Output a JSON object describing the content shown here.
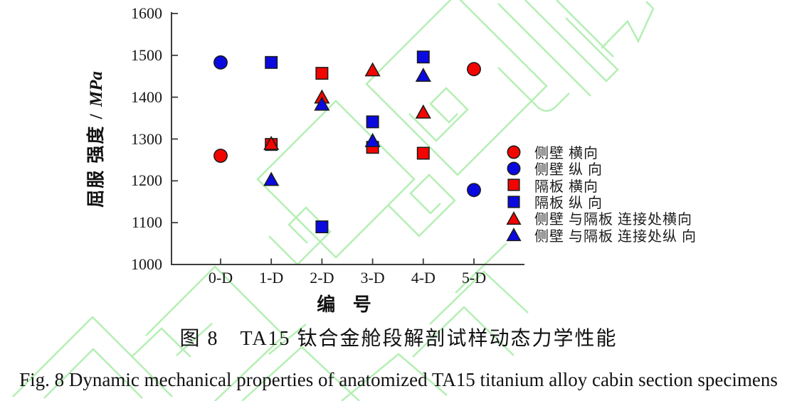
{
  "figure": {
    "caption_cn": "图 8　TA15 钛合金舱段解剖试样动态力学性能",
    "caption_en": "Fig. 8 Dynamic mechanical properties of anatomized TA15 titanium alloy cabin section specimens"
  },
  "colors": {
    "red": "#f20500",
    "blue": "#0a0ae0",
    "marker_outline": "#1a1a1a",
    "axis": "#3d3d3d",
    "watermark_green": "#b4efb4"
  },
  "chart_data": {
    "type": "scatter",
    "title": "",
    "xlabel": "编 号",
    "ylabel_cn": "屈服 强度",
    "ylabel_sep": " / ",
    "ylabel_unit": "MPa",
    "categories": [
      "0-D",
      "1-D",
      "2-D",
      "3-D",
      "4-D",
      "5-D"
    ],
    "y_ticks": [
      1000,
      1100,
      1200,
      1300,
      1400,
      1500,
      1600
    ],
    "ylim": [
      1000,
      1600
    ],
    "grid": false,
    "legend_position": "right-middle",
    "series": [
      {
        "name": "侧壁 横向",
        "marker": "circle",
        "color": "red",
        "points": [
          {
            "x": "0-D",
            "y": 1260
          },
          {
            "x": "5-D",
            "y": 1467
          }
        ]
      },
      {
        "name": "侧壁 纵 向",
        "marker": "circle",
        "color": "blue",
        "points": [
          {
            "x": "0-D",
            "y": 1483
          },
          {
            "x": "5-D",
            "y": 1178
          }
        ]
      },
      {
        "name": "隔板 横向",
        "marker": "square",
        "color": "red",
        "points": [
          {
            "x": "1-D",
            "y": 1287
          },
          {
            "x": "2-D",
            "y": 1457
          },
          {
            "x": "3-D",
            "y": 1280
          },
          {
            "x": "4-D",
            "y": 1266
          }
        ]
      },
      {
        "name": "隔板 纵 向",
        "marker": "square",
        "color": "blue",
        "points": [
          {
            "x": "1-D",
            "y": 1483
          },
          {
            "x": "2-D",
            "y": 1090
          },
          {
            "x": "3-D",
            "y": 1341
          },
          {
            "x": "4-D",
            "y": 1496
          }
        ]
      },
      {
        "name": "侧壁 与隔板 连接处横向",
        "marker": "triangle",
        "color": "red",
        "points": [
          {
            "x": "1-D",
            "y": 1290
          },
          {
            "x": "2-D",
            "y": 1401
          },
          {
            "x": "3-D",
            "y": 1466
          },
          {
            "x": "4-D",
            "y": 1365
          }
        ]
      },
      {
        "name": "侧壁 与隔板 连接处纵 向",
        "marker": "triangle",
        "color": "blue",
        "points": [
          {
            "x": "1-D",
            "y": 1204
          },
          {
            "x": "2-D",
            "y": 1384
          },
          {
            "x": "3-D",
            "y": 1297
          },
          {
            "x": "4-D",
            "y": 1453
          }
        ]
      }
    ]
  }
}
